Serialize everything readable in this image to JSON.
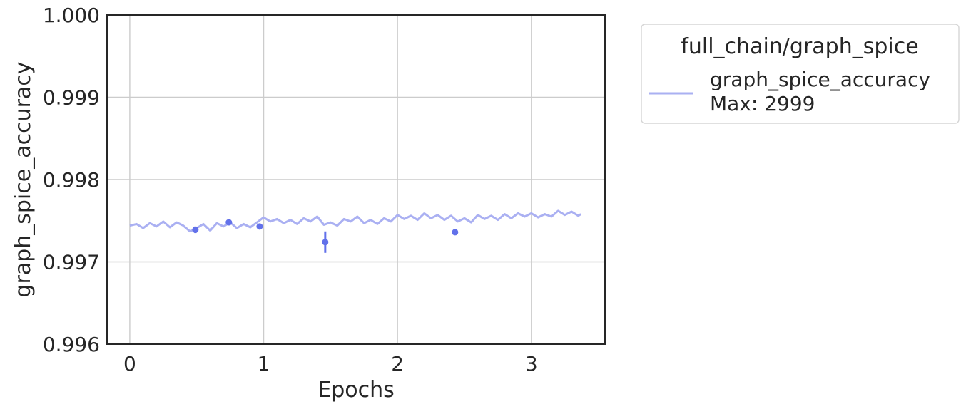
{
  "chart_data": {
    "type": "line",
    "xlabel": "Epochs",
    "ylabel": "graph_spice_accuracy",
    "xlim": [
      -0.17,
      3.55
    ],
    "ylim": [
      0.996,
      1.0
    ],
    "xticks": [
      0,
      1,
      2,
      3
    ],
    "xtick_labels": [
      "0",
      "1",
      "2",
      "3"
    ],
    "yticks": [
      0.996,
      0.997,
      0.998,
      0.999,
      1.0
    ],
    "ytick_labels": [
      "0.996",
      "0.997",
      "0.998",
      "0.999",
      "1.000"
    ],
    "grid": true,
    "legend": {
      "title": "full_chain/graph_spice",
      "placement": "outside-top-right",
      "entries": [
        "graph_spice_accuracy",
        "Max: 2999"
      ]
    },
    "series": [
      {
        "name": "graph_spice_accuracy",
        "color": "#aab0f2",
        "x": [
          0.0,
          0.05,
          0.1,
          0.15,
          0.2,
          0.25,
          0.3,
          0.35,
          0.4,
          0.45,
          0.5,
          0.55,
          0.6,
          0.65,
          0.7,
          0.75,
          0.8,
          0.85,
          0.9,
          0.95,
          1.0,
          1.05,
          1.1,
          1.15,
          1.2,
          1.25,
          1.3,
          1.35,
          1.4,
          1.45,
          1.5,
          1.55,
          1.6,
          1.65,
          1.7,
          1.75,
          1.8,
          1.85,
          1.9,
          1.95,
          2.0,
          2.05,
          2.1,
          2.15,
          2.2,
          2.25,
          2.3,
          2.35,
          2.4,
          2.45,
          2.5,
          2.55,
          2.6,
          2.65,
          2.7,
          2.75,
          2.8,
          2.85,
          2.9,
          2.95,
          3.0,
          3.05,
          3.1,
          3.15,
          3.2,
          3.25,
          3.3,
          3.35,
          3.37
        ],
        "y": [
          0.99744,
          0.99746,
          0.99741,
          0.99747,
          0.99743,
          0.99749,
          0.99742,
          0.99748,
          0.99744,
          0.99737,
          0.99741,
          0.99746,
          0.99738,
          0.99747,
          0.99743,
          0.99748,
          0.99741,
          0.99746,
          0.99742,
          0.99748,
          0.99754,
          0.99749,
          0.99752,
          0.99747,
          0.99751,
          0.99746,
          0.99753,
          0.99749,
          0.99755,
          0.99745,
          0.99748,
          0.99744,
          0.99752,
          0.99749,
          0.99755,
          0.99747,
          0.99751,
          0.99746,
          0.99753,
          0.99749,
          0.99757,
          0.99752,
          0.99756,
          0.99751,
          0.99759,
          0.99753,
          0.99757,
          0.99751,
          0.99756,
          0.99749,
          0.99753,
          0.99748,
          0.99757,
          0.99752,
          0.99756,
          0.99751,
          0.99758,
          0.99753,
          0.99759,
          0.99755,
          0.99759,
          0.99754,
          0.99758,
          0.99755,
          0.99762,
          0.99757,
          0.99761,
          0.99756,
          0.99758
        ]
      },
      {
        "name": "graph_spice_accuracy (points)",
        "color": "#6271ea",
        "type": "scatter-errorbar",
        "x": [
          0.49,
          0.74,
          0.97,
          1.46,
          2.43
        ],
        "y": [
          0.99739,
          0.99748,
          0.99743,
          0.99724,
          0.99736
        ],
        "err": [
          4e-05,
          2e-05,
          2e-05,
          0.00013,
          2e-05
        ]
      }
    ]
  }
}
